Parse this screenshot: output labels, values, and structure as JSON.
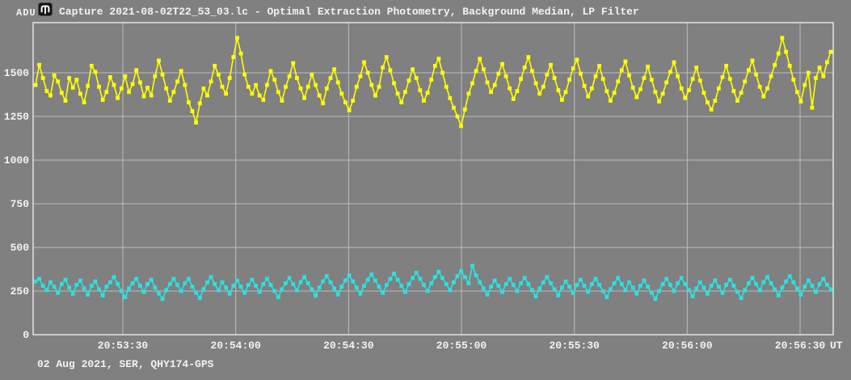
{
  "header": {
    "adu_label": "ADU",
    "app_icon": "tangra-icon",
    "title": "Capture 2021-08-02T22_53_03.lc - Optimal Extraction Photometry, Background Median, LP Filter"
  },
  "footer": {
    "info": "02 Aug 2021, SER, QHY174-GPS"
  },
  "chart_data": {
    "type": "line",
    "title": "Capture 2021-08-02T22_53_03.lc - Optimal Extraction Photometry, Background Median, LP Filter",
    "ylabel": "ADU",
    "x_axis_unit": "UT",
    "x_ticks": [
      "20:53:30",
      "20:54:00",
      "20:54:30",
      "20:55:00",
      "20:55:30",
      "20:56:00",
      "20:56:30"
    ],
    "y_ticks": [
      0,
      250,
      500,
      750,
      1000,
      1250,
      1500
    ],
    "ylim": [
      0,
      1790
    ],
    "x_range_visible": [
      "20:53:06",
      "20:56:39"
    ],
    "grid": true,
    "legend": "none",
    "colors": {
      "target": "#ffff00",
      "comparison": "#2ae2e2",
      "grid": "#bdbdbd",
      "frame": "#ebebeb",
      "background": "#808080",
      "text": "#f2f2f2"
    },
    "series": [
      {
        "name": "target-star-yellow",
        "color_key": "target",
        "values": [
          1430,
          1545,
          1470,
          1395,
          1370,
          1485,
          1450,
          1385,
          1340,
          1470,
          1415,
          1460,
          1380,
          1330,
          1425,
          1540,
          1505,
          1420,
          1345,
          1390,
          1475,
          1430,
          1355,
          1410,
          1480,
          1390,
          1435,
          1515,
          1445,
          1365,
          1415,
          1370,
          1480,
          1570,
          1490,
          1410,
          1340,
          1390,
          1450,
          1510,
          1430,
          1330,
          1280,
          1215,
          1325,
          1410,
          1370,
          1450,
          1540,
          1490,
          1420,
          1380,
          1470,
          1590,
          1700,
          1610,
          1490,
          1420,
          1380,
          1430,
          1370,
          1345,
          1430,
          1510,
          1460,
          1390,
          1340,
          1420,
          1480,
          1555,
          1470,
          1410,
          1355,
          1420,
          1490,
          1430,
          1370,
          1325,
          1410,
          1470,
          1520,
          1445,
          1380,
          1330,
          1285,
          1340,
          1420,
          1480,
          1560,
          1500,
          1430,
          1370,
          1420,
          1530,
          1590,
          1515,
          1440,
          1380,
          1330,
          1390,
          1455,
          1520,
          1470,
          1400,
          1340,
          1385,
          1460,
          1540,
          1580,
          1500,
          1420,
          1355,
          1300,
          1250,
          1195,
          1290,
          1380,
          1440,
          1510,
          1580,
          1520,
          1445,
          1390,
          1430,
          1495,
          1550,
          1480,
          1410,
          1350,
          1395,
          1465,
          1530,
          1590,
          1510,
          1440,
          1380,
          1420,
          1490,
          1545,
          1470,
          1400,
          1345,
          1390,
          1460,
          1525,
          1575,
          1495,
          1425,
          1365,
          1410,
          1480,
          1540,
          1465,
          1395,
          1340,
          1385,
          1450,
          1515,
          1565,
          1485,
          1415,
          1360,
          1405,
          1470,
          1535,
          1460,
          1390,
          1335,
          1380,
          1445,
          1505,
          1560,
          1480,
          1410,
          1355,
          1400,
          1465,
          1530,
          1455,
          1385,
          1330,
          1290,
          1340,
          1410,
          1475,
          1540,
          1465,
          1395,
          1340,
          1385,
          1450,
          1515,
          1570,
          1490,
          1420,
          1365,
          1410,
          1480,
          1545,
          1610,
          1700,
          1620,
          1540,
          1460,
          1390,
          1335,
          1430,
          1500,
          1300,
          1470,
          1530,
          1480,
          1560,
          1620
        ]
      },
      {
        "name": "comparison-background-cyan",
        "color_key": "comparison",
        "values": [
          305,
          320,
          280,
          255,
          300,
          275,
          240,
          290,
          315,
          270,
          235,
          285,
          310,
          265,
          230,
          280,
          305,
          260,
          225,
          275,
          300,
          330,
          290,
          250,
          215,
          265,
          295,
          320,
          280,
          245,
          290,
          315,
          270,
          235,
          205,
          255,
          290,
          320,
          285,
          250,
          295,
          320,
          275,
          240,
          210,
          260,
          300,
          330,
          290,
          255,
          300,
          270,
          235,
          280,
          310,
          275,
          240,
          285,
          315,
          280,
          245,
          290,
          320,
          285,
          250,
          215,
          260,
          295,
          325,
          290,
          255,
          300,
          330,
          295,
          260,
          225,
          270,
          305,
          335,
          300,
          265,
          230,
          275,
          310,
          340,
          305,
          270,
          235,
          280,
          315,
          345,
          310,
          275,
          240,
          285,
          320,
          350,
          315,
          280,
          245,
          290,
          325,
          355,
          320,
          285,
          250,
          295,
          330,
          360,
          325,
          290,
          255,
          300,
          335,
          365,
          330,
          295,
          395,
          340,
          300,
          265,
          230,
          275,
          310,
          280,
          245,
          290,
          320,
          285,
          250,
          295,
          325,
          290,
          255,
          220,
          265,
          300,
          330,
          295,
          260,
          225,
          270,
          305,
          275,
          240,
          285,
          315,
          280,
          245,
          290,
          320,
          285,
          250,
          215,
          260,
          295,
          325,
          290,
          255,
          300,
          270,
          235,
          280,
          310,
          275,
          240,
          205,
          250,
          290,
          320,
          285,
          250,
          295,
          325,
          290,
          255,
          220,
          265,
          300,
          270,
          235,
          280,
          310,
          275,
          240,
          285,
          315,
          280,
          245,
          210,
          255,
          295,
          325,
          290,
          255,
          300,
          330,
          295,
          260,
          225,
          270,
          305,
          335,
          300,
          265,
          230,
          275,
          310,
          280,
          245,
          290,
          320,
          285,
          260
        ]
      }
    ]
  }
}
